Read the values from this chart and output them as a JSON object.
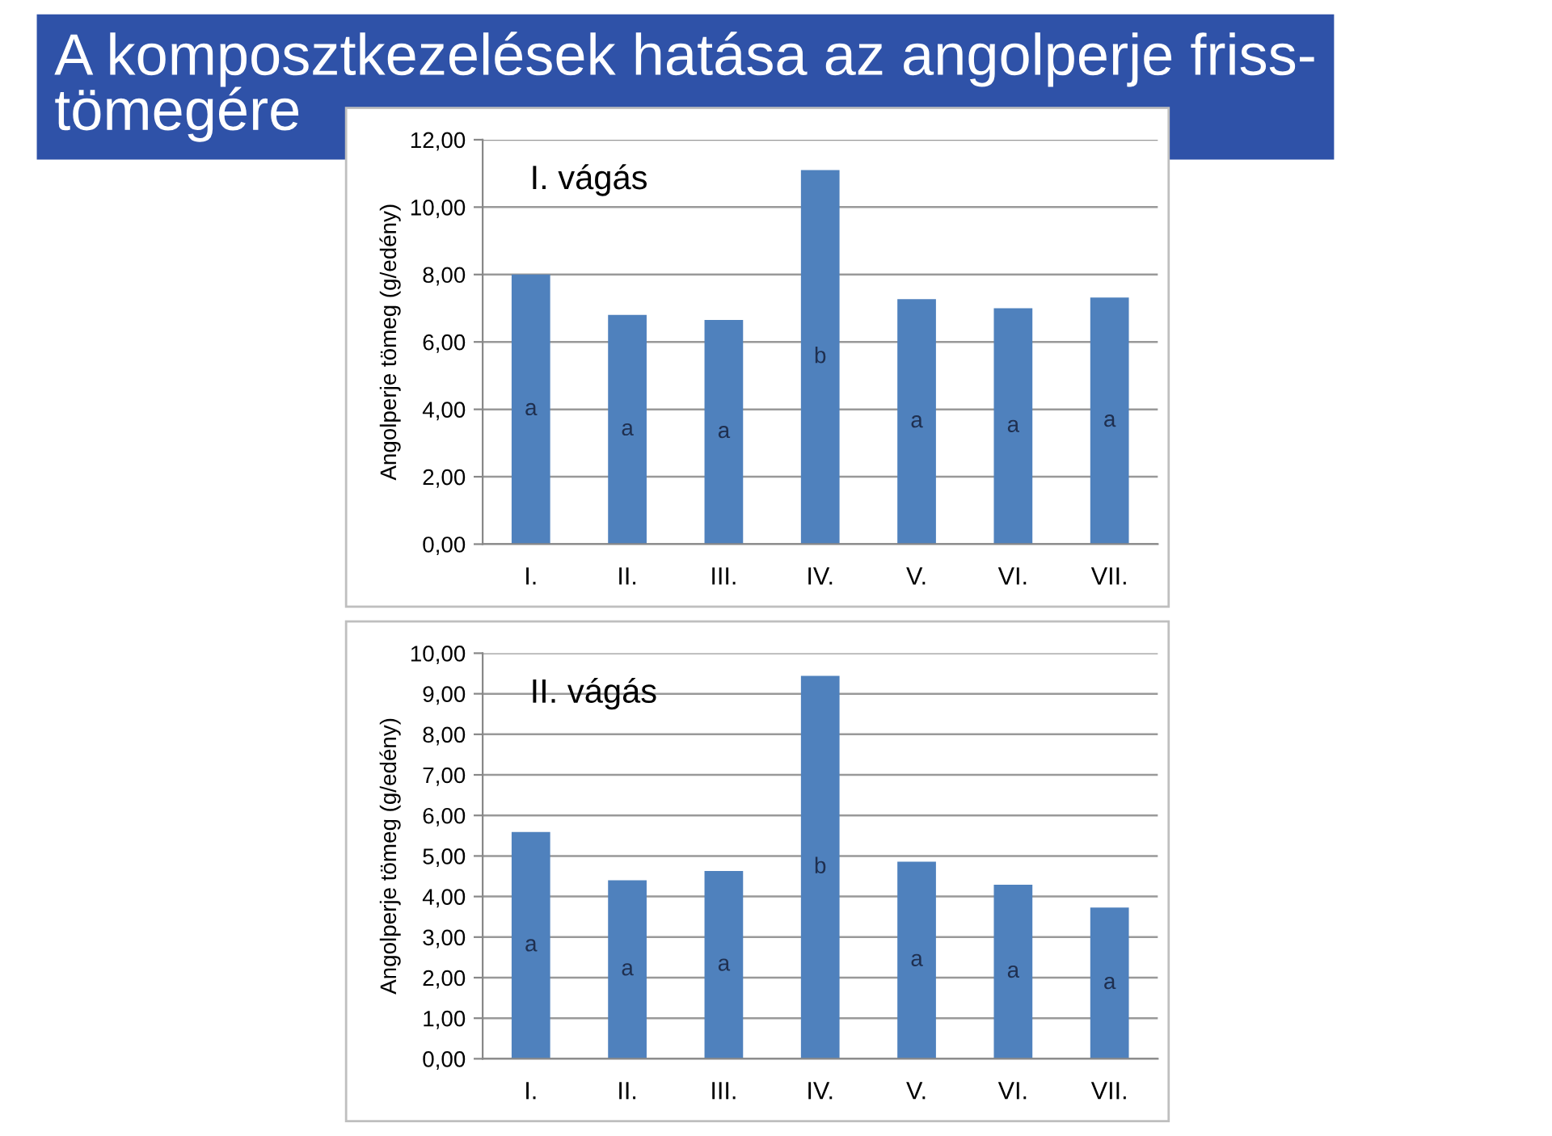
{
  "chart_data": [
    {
      "type": "bar",
      "title": "I. vágás",
      "ylabel": "Angolperje tömeg (g/edény)",
      "categories": [
        "I.",
        "II.",
        "III.",
        "IV.",
        "V.",
        "VI.",
        "VII."
      ],
      "values": [
        8.0,
        6.8,
        6.65,
        11.1,
        7.27,
        7.0,
        7.32
      ],
      "color": "#4f81bd",
      "ylim": [
        0,
        12
      ],
      "yticks": [
        {
          "value": 0,
          "label": "0,00"
        },
        {
          "value": 2,
          "label": "2,00"
        },
        {
          "value": 4,
          "label": "4,00"
        },
        {
          "value": 6,
          "label": "6,00"
        },
        {
          "value": 8,
          "label": "8,00"
        },
        {
          "value": 10,
          "label": "10,00"
        },
        {
          "value": 12,
          "label": "12,00"
        }
      ],
      "grid": "y",
      "value_labels": [
        "a",
        "a",
        "a",
        "b",
        "a",
        "a",
        "a"
      ],
      "annotations": [
        "A komposztkezelések hatása az angolperje friss-\ntömegére"
      ]
    },
    {
      "type": "bar",
      "title": "II. vágás",
      "ylabel": "Angolperje tömeg (g/edény)",
      "categories": [
        "I.",
        "II.",
        "III.",
        "IV.",
        "V.",
        "VI.",
        "VII."
      ],
      "values": [
        5.59,
        4.4,
        4.63,
        9.44,
        4.86,
        4.29,
        3.73
      ],
      "color": "#4f81bd",
      "ylim": [
        0,
        10
      ],
      "yticks": [
        {
          "value": 0,
          "label": "0,00"
        },
        {
          "value": 1,
          "label": "1,00"
        },
        {
          "value": 2,
          "label": "2,00"
        },
        {
          "value": 3,
          "label": "3,00"
        },
        {
          "value": 4,
          "label": "4,00"
        },
        {
          "value": 5,
          "label": "5,00"
        },
        {
          "value": 6,
          "label": "6,00"
        },
        {
          "value": 7,
          "label": "7,00"
        },
        {
          "value": 8,
          "label": "8,00"
        },
        {
          "value": 9,
          "label": "9,00"
        },
        {
          "value": 10,
          "label": "10,00"
        }
      ],
      "grid": "y",
      "value_labels": [
        "a",
        "a",
        "a",
        "b",
        "a",
        "a",
        "a"
      ]
    }
  ]
}
